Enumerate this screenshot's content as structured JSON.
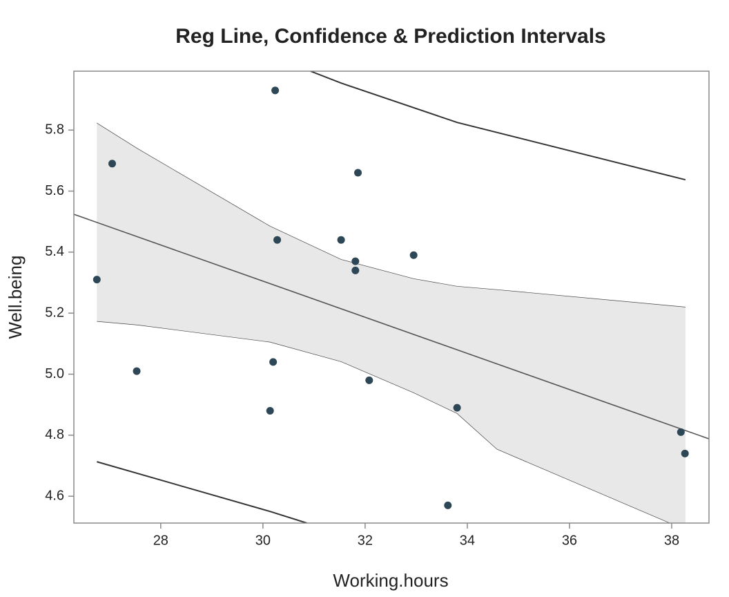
{
  "chart_data": {
    "type": "scatter",
    "title": "Reg Line, Confidence & Prediction Intervals",
    "x_label": "Working.hours",
    "y_label": "Well.being",
    "xlim": [
      26.3,
      38.73
    ],
    "ylim": [
      4.512,
      5.993
    ],
    "xticks": [
      28,
      30,
      32,
      34,
      36,
      38
    ],
    "yticks": [
      4.6,
      4.8,
      {
        "value": 5,
        "label": "5.0"
      },
      5.2,
      5.4,
      5.6,
      5.8
    ],
    "grid": false,
    "points": {
      "color": "#2e4756",
      "x": [
        26.75,
        27.05,
        27.53,
        30.14,
        30.2,
        30.24,
        30.28,
        31.53,
        31.81,
        31.81,
        31.86,
        32.08,
        32.95,
        33.62,
        33.8,
        38.18,
        38.26
      ],
      "y": [
        5.31,
        5.69,
        5.01,
        4.88,
        5.04,
        5.93,
        5.44,
        5.44,
        5.37,
        5.34,
        5.66,
        4.98,
        5.39,
        4.57,
        4.89,
        4.81,
        4.74
      ]
    },
    "fit": {
      "color": "#555555",
      "x": [
        26.3,
        38.73
      ],
      "y": [
        5.524,
        4.788
      ]
    },
    "confidence": {
      "color": "#e8e8e8",
      "x": [
        26.75,
        27.55,
        30.14,
        31.53,
        32.95,
        33.8,
        34.58,
        38.27
      ],
      "upper": [
        5.823,
        5.739,
        5.485,
        5.376,
        5.313,
        5.288,
        5.277,
        5.22
      ],
      "lower": [
        5.173,
        5.161,
        5.105,
        5.041,
        4.939,
        4.871,
        4.754,
        4.49
      ]
    },
    "prediction_upper": {
      "color": "#333333",
      "x": [
        30.93,
        31.53,
        33.8,
        38.27
      ],
      "y": [
        5.993,
        5.954,
        5.825,
        5.637
      ]
    },
    "prediction_lower": {
      "color": "#333333",
      "x": [
        26.75,
        30.14,
        30.86
      ],
      "y": [
        4.713,
        4.55,
        4.512
      ]
    }
  }
}
